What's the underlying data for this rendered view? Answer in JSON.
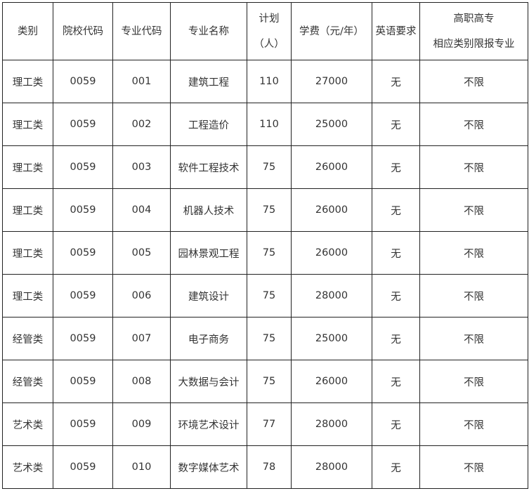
{
  "headers": [
    "类别",
    "院校代码",
    "专业代码",
    "专业名称",
    "计划",
    "（人）",
    "学费（元/年）",
    "英语要求",
    "高职高专",
    "相应类别限报专业"
  ],
  "rows": [
    [
      "理工类",
      "0059",
      "001",
      "建筑工程",
      "110",
      "27000",
      "无",
      "不限"
    ],
    [
      "理工类",
      "0059",
      "002",
      "工程造价",
      "110",
      "25000",
      "无",
      "不限"
    ],
    [
      "理工类",
      "0059",
      "003",
      "软件工程技术",
      "75",
      "26000",
      "无",
      "不限"
    ],
    [
      "理工类",
      "0059",
      "004",
      "机器人技术",
      "75",
      "26000",
      "无",
      "不限"
    ],
    [
      "理工类",
      "0059",
      "005",
      "园林景观工程",
      "75",
      "26000",
      "无",
      "不限"
    ],
    [
      "理工类",
      "0059",
      "006",
      "建筑设计",
      "75",
      "28000",
      "无",
      "不限"
    ],
    [
      "经管类",
      "0059",
      "007",
      "电子商务",
      "75",
      "25000",
      "无",
      "不限"
    ],
    [
      "经管类",
      "0059",
      "008",
      "大数据与会计",
      "75",
      "26000",
      "无",
      "不限"
    ],
    [
      "艺术类",
      "0059",
      "009",
      "环境艺术设计",
      "77",
      "28000",
      "无",
      "不限"
    ],
    [
      "艺术类",
      "0059",
      "010",
      "数字媒体艺术",
      "78",
      "28000",
      "无",
      "不限"
    ]
  ]
}
